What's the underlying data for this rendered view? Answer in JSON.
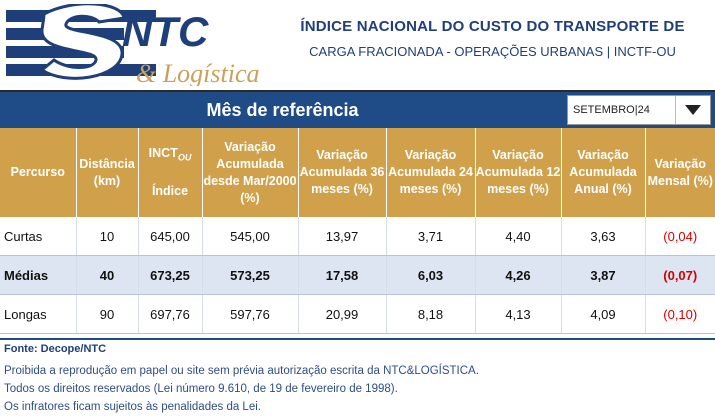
{
  "brand": {
    "logo_text": "NTC",
    "logo_sub": "& Logística",
    "colors": {
      "navy": "#1f3f7a",
      "gold": "#d1a04a",
      "red": "#d40000"
    }
  },
  "header": {
    "title_line1": "ÍNDICE NACIONAL DO CUSTO DO TRANSPORTE DE",
    "title_line2": "CARGA FRACIONADA - OPERAÇÕES URBANAS | INCTF-OU"
  },
  "reference": {
    "label": "Mês de referência",
    "selected": "SETEMBRO|24",
    "icon": "dropdown-arrow-icon"
  },
  "table": {
    "headers": {
      "percurso": "Percurso",
      "distancia": "Distância (km)",
      "inct_main": "INCT",
      "inct_sub": "OU",
      "inct_index": "Índice",
      "var_2000": "Variação Acumulada desde Mar/2000 (%)",
      "var_36": "Variação Acumulada 36 meses (%)",
      "var_24": "Variação Acumulada 24 meses (%)",
      "var_12": "Variação Acumulada 12 meses (%)",
      "var_anual": "Variação Acumulada Anual (%)",
      "var_mensal": "Variação Mensal (%)"
    },
    "rows": [
      {
        "percurso": "Curtas",
        "distancia": "10",
        "indice": "645,00",
        "var_2000": "545,00",
        "var_36": "13,97",
        "var_24": "3,71",
        "var_12": "4,40",
        "var_anual": "3,63",
        "var_mensal": "(0,04)"
      },
      {
        "percurso": "Médias",
        "distancia": "40",
        "indice": "673,25",
        "var_2000": "573,25",
        "var_36": "17,58",
        "var_24": "6,03",
        "var_12": "4,26",
        "var_anual": "3,87",
        "var_mensal": "(0,07)"
      },
      {
        "percurso": "Longas",
        "distancia": "90",
        "indice": "697,76",
        "var_2000": "597,76",
        "var_36": "20,99",
        "var_24": "8,18",
        "var_12": "4,13",
        "var_anual": "4,09",
        "var_mensal": "(0,10)"
      }
    ]
  },
  "footer": {
    "source": "Fonte: Decope/NTC",
    "notes": [
      "Proibida a reprodução em papel ou site sem prévia autorização escrita da NTC&LOGÍSTICA.",
      "Todos os direitos reservados (Lei número 9.610, de 19 de fevereiro de 1998).",
      "Os infratores ficam sujeitos às penalidades da Lei."
    ]
  }
}
